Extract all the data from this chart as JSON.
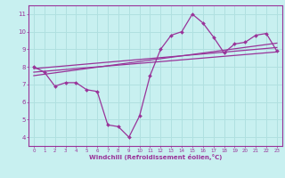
{
  "xlabel": "Windchill (Refroidissement éolien,°C)",
  "bg_color": "#c8f0f0",
  "grid_color": "#b0e0e0",
  "line_color": "#993399",
  "xlim": [
    -0.5,
    23.5
  ],
  "ylim": [
    3.5,
    11.5
  ],
  "xticks": [
    0,
    1,
    2,
    3,
    4,
    5,
    6,
    7,
    8,
    9,
    10,
    11,
    12,
    13,
    14,
    15,
    16,
    17,
    18,
    19,
    20,
    21,
    22,
    23
  ],
  "yticks": [
    4,
    5,
    6,
    7,
    8,
    9,
    10,
    11
  ],
  "main_line_x": [
    0,
    1,
    2,
    3,
    4,
    5,
    6,
    7,
    8,
    9,
    10,
    11,
    12,
    13,
    14,
    15,
    16,
    17,
    18,
    19,
    20,
    21,
    22,
    23
  ],
  "main_line_y": [
    8.0,
    7.7,
    6.9,
    7.1,
    7.1,
    6.7,
    6.6,
    4.7,
    4.6,
    4.0,
    5.2,
    7.5,
    9.0,
    9.8,
    10.0,
    11.0,
    10.5,
    9.7,
    8.8,
    9.3,
    9.4,
    9.8,
    9.9,
    8.9
  ],
  "line2_x": [
    0,
    23
  ],
  "line2_y": [
    7.9,
    9.1
  ],
  "line3_x": [
    0,
    23
  ],
  "line3_y": [
    7.7,
    8.85
  ],
  "line4_x": [
    0,
    23
  ],
  "line4_y": [
    7.5,
    9.35
  ]
}
